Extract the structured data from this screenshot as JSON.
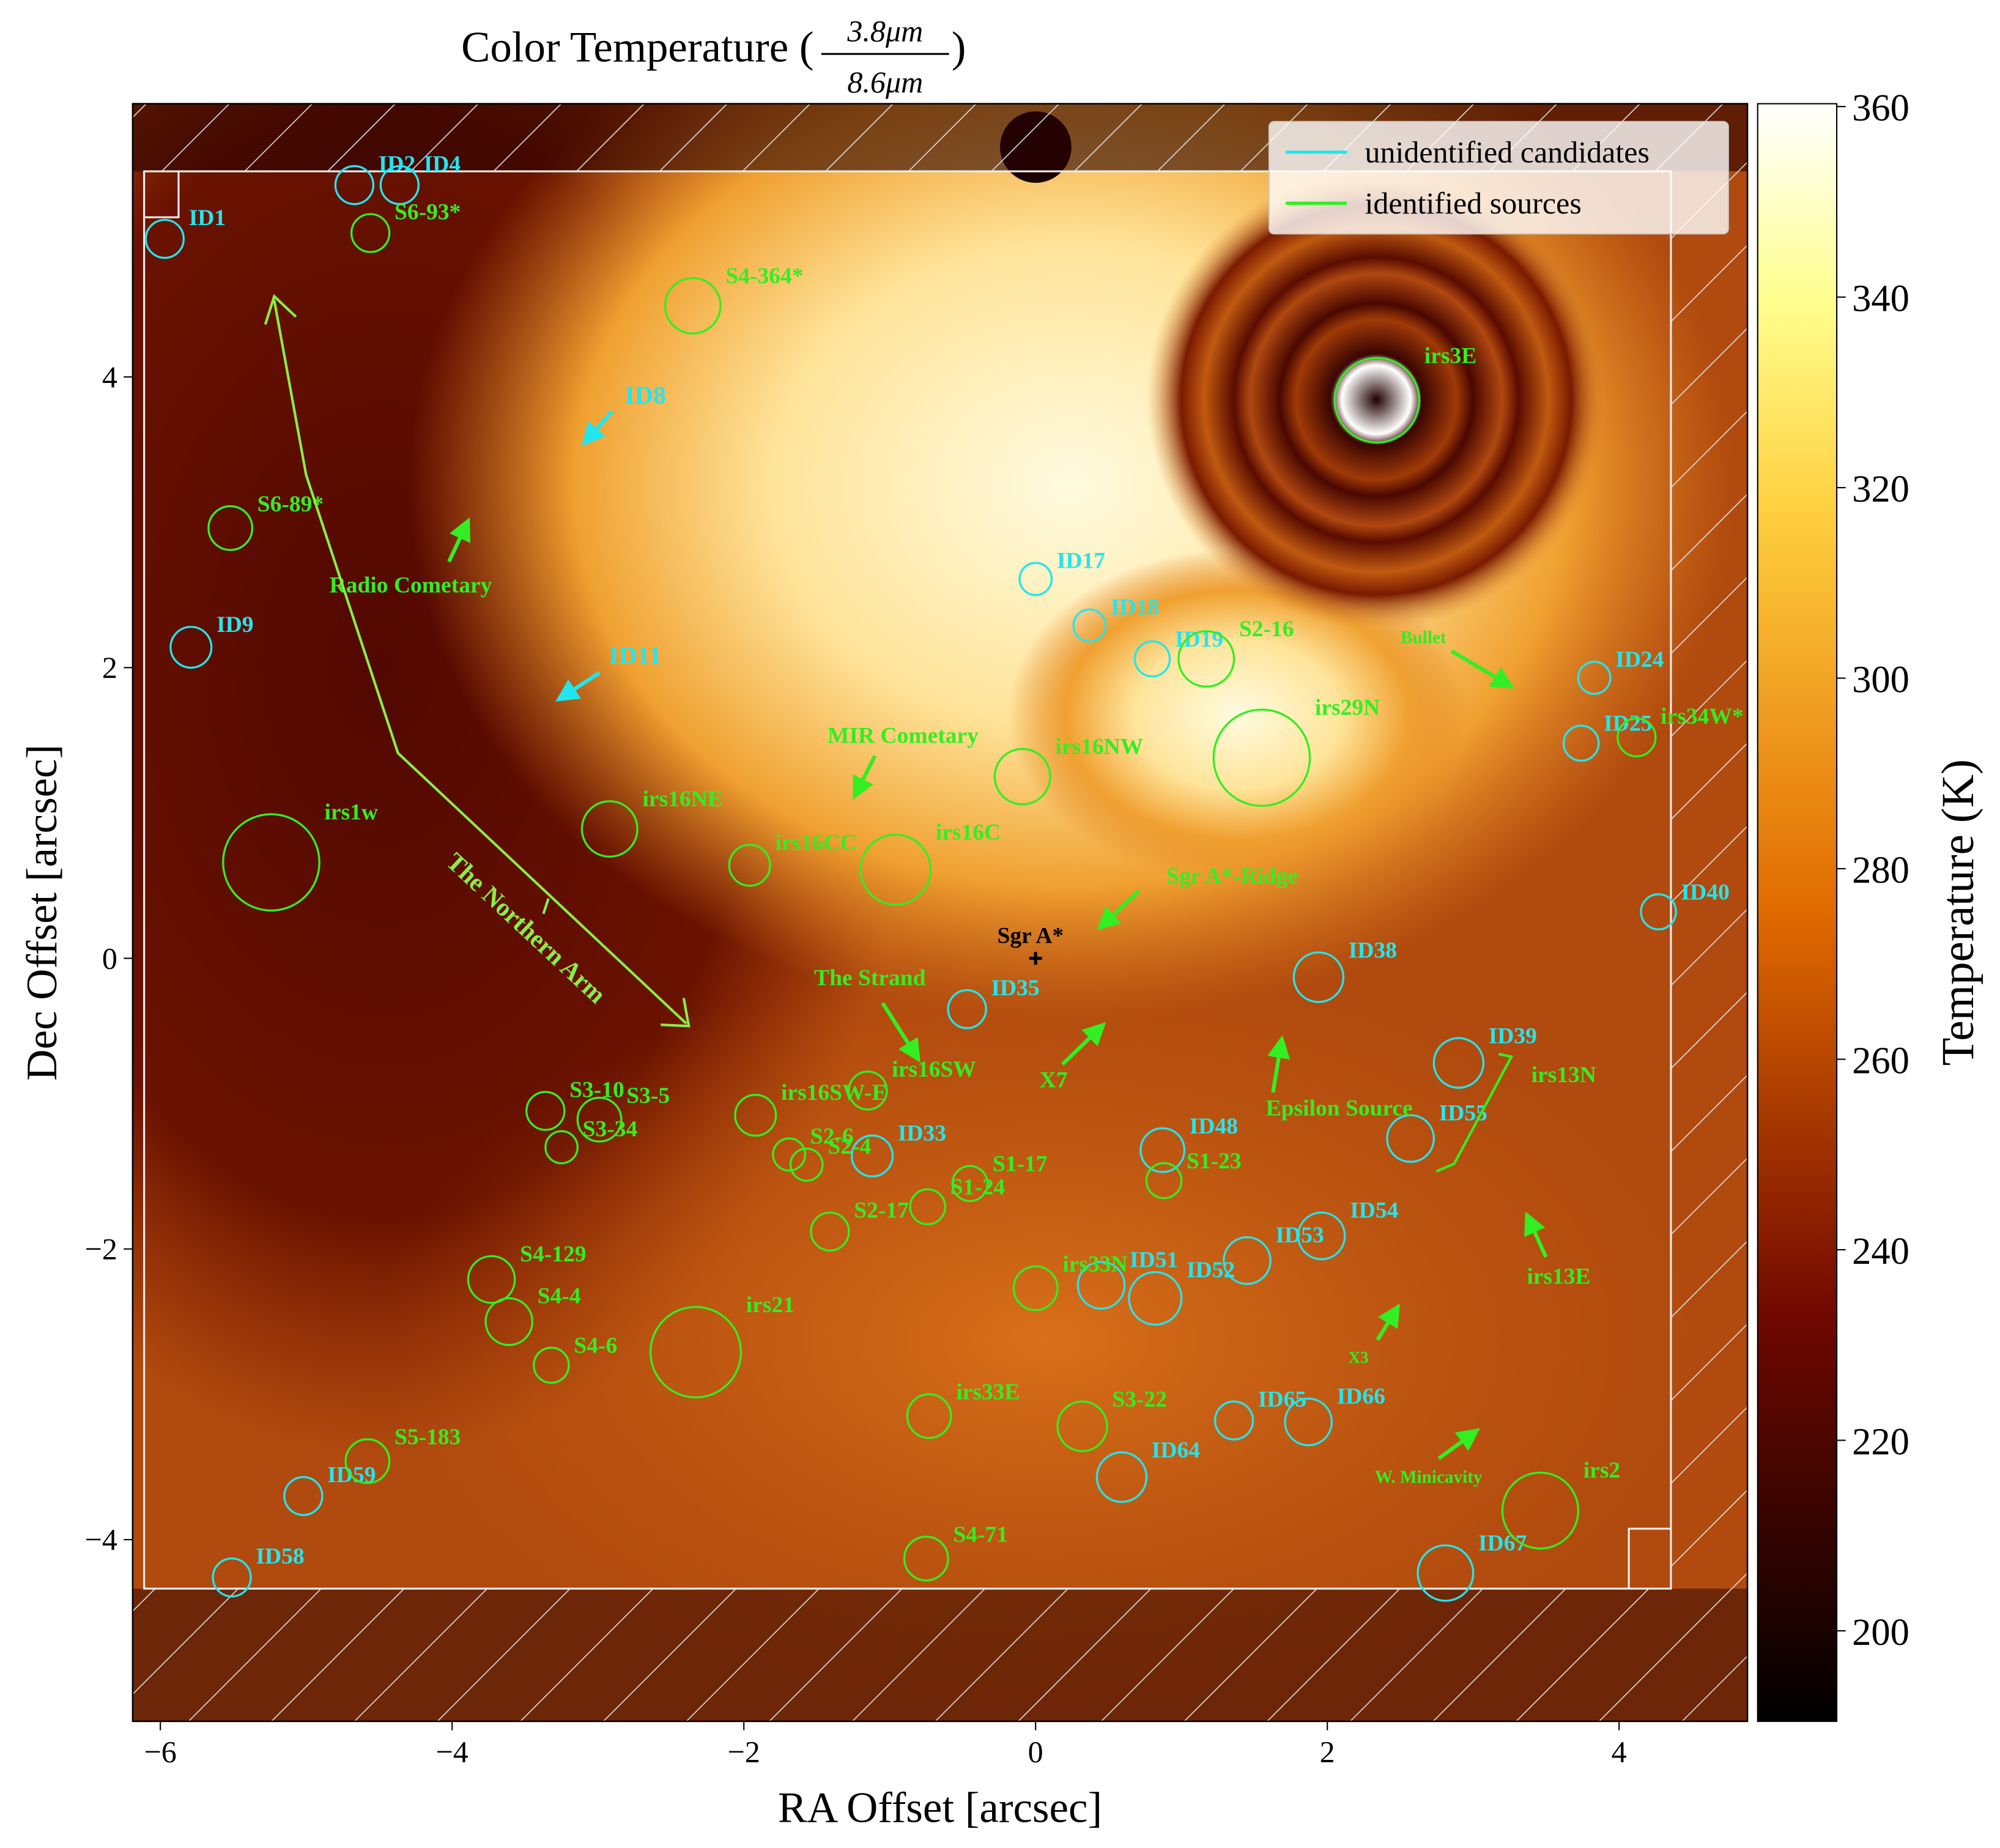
{
  "chart_data": {
    "type": "scatter",
    "title_prefix": "Color Temperature (",
    "title_numerator": "3.8μm",
    "title_denominator": "8.6μm",
    "title_suffix": ")",
    "xlabel": "RA Offset [arcsec]",
    "ylabel": "Dec Offset [arcsec]",
    "xlim": [
      -6.19,
      4.88
    ],
    "ylim": [
      -5.25,
      5.88
    ],
    "xticks": [
      {
        "value": -6,
        "label": "−6"
      },
      {
        "value": -4,
        "label": "−4"
      },
      {
        "value": -2,
        "label": "−2"
      },
      0,
      2,
      4
    ],
    "yticks": [
      {
        "value": -4,
        "label": "−4"
      },
      {
        "value": -2,
        "label": "−2"
      },
      0,
      2,
      4
    ],
    "colorbar": {
      "label": "Temperature (K)",
      "clim": [
        190.5,
        360.3
      ],
      "ticks": [
        200,
        220,
        240,
        260,
        280,
        300,
        320,
        340,
        360
      ]
    },
    "legend": "upper right",
    "series": [
      {
        "name": "unidentified candidates",
        "color": "#22e6ee",
        "labels": [
          "ID1",
          "ID2",
          "ID4",
          "ID9",
          "ID17",
          "ID18",
          "ID19",
          "ID24",
          "ID25",
          "ID40",
          "ID38",
          "ID35",
          "ID39",
          "ID55",
          "ID48",
          "ID33",
          "ID54",
          "ID53",
          "ID51",
          "ID52",
          "ID65",
          "ID66",
          "ID64",
          "ID67",
          "ID59",
          "ID58"
        ],
        "x": [
          -5.97,
          -4.67,
          -4.36,
          -5.79,
          0.0,
          0.37,
          0.8,
          3.83,
          3.74,
          4.27,
          1.94,
          -0.47,
          2.9,
          2.57,
          0.87,
          -1.12,
          1.96,
          1.45,
          0.45,
          0.82,
          1.36,
          1.87,
          0.59,
          2.81,
          -5.02,
          -5.51
        ],
        "values": [
          4.95,
          5.32,
          5.32,
          2.14,
          2.61,
          2.29,
          2.06,
          1.93,
          1.48,
          0.32,
          -0.13,
          -0.35,
          -0.72,
          -1.24,
          -1.32,
          -1.36,
          -1.91,
          -2.08,
          -2.25,
          -2.34,
          -3.18,
          -3.19,
          -3.57,
          -4.23,
          -3.7,
          -4.26
        ],
        "sizes": [
          0.13,
          0.13,
          0.13,
          0.14,
          0.11,
          0.11,
          0.12,
          0.11,
          0.12,
          0.12,
          0.17,
          0.13,
          0.17,
          0.16,
          0.15,
          0.14,
          0.16,
          0.16,
          0.16,
          0.18,
          0.13,
          0.16,
          0.17,
          0.19,
          0.13,
          0.13
        ]
      },
      {
        "name": "identified sources",
        "color": "#33ee22",
        "labels": [
          "S6-93*",
          "S4-364*",
          "irs3E",
          "S6-89*",
          "S2-16",
          "irs29N",
          "irs34W*",
          "irs16NW",
          "irs16NE",
          "irs1w",
          "irs16CC",
          "irs16C",
          "irs16SW-E",
          "irs16SW",
          "S3-10",
          "S3-5",
          "S3-34",
          "S2-6",
          "S2-4",
          "S1-17",
          "S1-24",
          "S2-17",
          "S1-23",
          "S4-129",
          "S4-4",
          "S4-6",
          "irs21",
          "irs33N",
          "irs33E",
          "S3-22",
          "S5-183",
          "S4-71",
          "irs2"
        ],
        "x": [
          -4.56,
          -2.35,
          2.34,
          -5.52,
          1.17,
          1.55,
          4.12,
          -0.09,
          -2.92,
          -5.24,
          -1.96,
          -0.96,
          -1.92,
          -1.15,
          -3.36,
          -2.99,
          -3.25,
          -1.69,
          -1.57,
          -0.45,
          -0.74,
          -1.41,
          0.88,
          -3.73,
          -3.61,
          -3.32,
          -2.33,
          0.0,
          -0.73,
          0.32,
          -4.58,
          -0.75,
          3.46
        ],
        "values": [
          4.99,
          4.49,
          3.84,
          2.96,
          2.06,
          1.38,
          1.52,
          1.25,
          0.89,
          0.66,
          0.64,
          0.61,
          -1.08,
          -0.91,
          -1.05,
          -1.11,
          -1.3,
          -1.35,
          -1.42,
          -1.55,
          -1.71,
          -1.88,
          -1.53,
          -2.21,
          -2.5,
          -2.8,
          -2.71,
          -2.27,
          -3.15,
          -3.22,
          -3.46,
          -4.13,
          -3.8
        ],
        "sizes": [
          0.13,
          0.19,
          0.29,
          0.15,
          0.19,
          0.33,
          0.13,
          0.19,
          0.19,
          0.33,
          0.14,
          0.24,
          0.14,
          0.13,
          0.13,
          0.15,
          0.11,
          0.11,
          0.11,
          0.12,
          0.12,
          0.13,
          0.12,
          0.16,
          0.16,
          0.12,
          0.31,
          0.15,
          0.15,
          0.17,
          0.15,
          0.15,
          0.26
        ]
      }
    ],
    "reference": {
      "label": "Sgr A*",
      "x": 0,
      "y": 0
    },
    "annotations": [
      "Radio Cometary",
      "MIR Cometary",
      "Sgr A*-Ridge",
      "The Strand",
      "X7",
      "Epsilon Source",
      "Bullet",
      "irs13N",
      "irs13E",
      "X3",
      "W. Minicavity",
      "The Northern Arm",
      "ID8",
      "ID11"
    ]
  }
}
